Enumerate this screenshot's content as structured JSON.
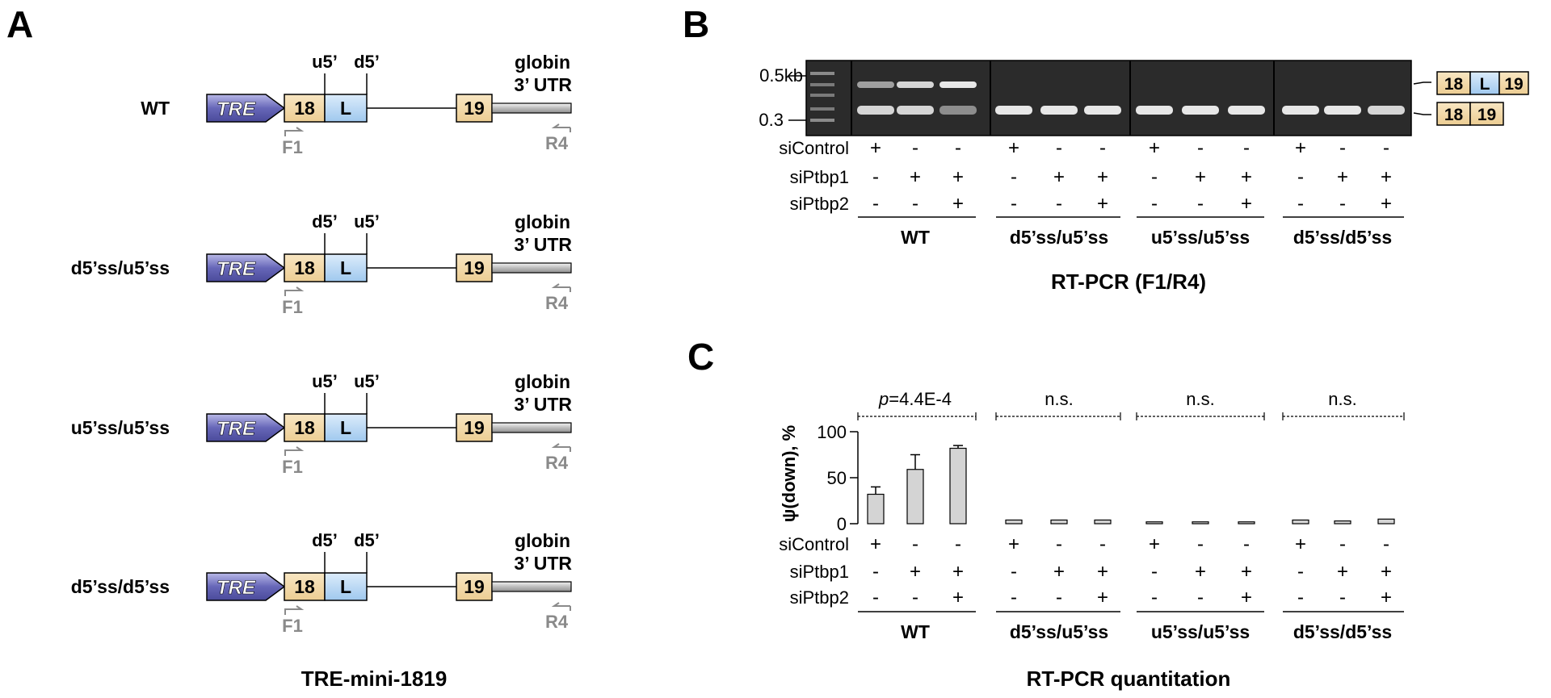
{
  "panel_labels": {
    "a": "A",
    "b": "B",
    "c": "C"
  },
  "panel_a": {
    "caption": "TRE-mini-1819",
    "tre_label": "TRE",
    "exon18": "18",
    "exon_l": "L",
    "exon19": "19",
    "utr_line1": "globin",
    "utr_line2": "3’ UTR",
    "primer_f": "F1",
    "primer_r": "R4",
    "constructs": [
      {
        "name": "WT",
        "site_left": "u5’",
        "site_right": "d5’"
      },
      {
        "name": "d5’ss/u5’ss",
        "site_left": "d5’",
        "site_right": "u5’"
      },
      {
        "name": "u5’ss/u5’ss",
        "site_left": "u5’",
        "site_right": "u5’"
      },
      {
        "name": "d5’ss/d5’ss",
        "site_left": "d5’",
        "site_right": "d5’"
      }
    ]
  },
  "panel_b": {
    "caption": "RT-PCR (F1/R4)",
    "marker_top": "0.5kb",
    "marker_bottom": "0.3",
    "product_long": [
      "18",
      "L",
      "19"
    ],
    "product_short": [
      "18",
      "19"
    ],
    "row_labels": [
      "siControl",
      "siPtbp1",
      "siPtbp2"
    ],
    "band_intensity_note": "upper band intensity per lane (0-1)",
    "upper_band": [
      0.55,
      0.85,
      0.95,
      0,
      0,
      0,
      0,
      0,
      0,
      0,
      0,
      0
    ],
    "lower_band": [
      0.85,
      0.85,
      0.45,
      0.95,
      0.95,
      0.95,
      0.95,
      0.95,
      0.95,
      0.95,
      0.95,
      0.85
    ]
  },
  "conditions": {
    "siControl": [
      "+",
      "-",
      "-"
    ],
    "siPtbp1": [
      "-",
      "+",
      "+"
    ],
    "siPtbp2": [
      "-",
      "-",
      "+"
    ]
  },
  "groups": [
    "WT",
    "d5’ss/u5’ss",
    "u5’ss/u5’ss",
    "d5’ss/d5’ss"
  ],
  "panel_c": {
    "caption": "RT-PCR quantitation",
    "significance": [
      {
        "prefix": "p",
        "text": "=4.4E-4"
      },
      {
        "prefix": "",
        "text": "n.s."
      },
      {
        "prefix": "",
        "text": "n.s."
      },
      {
        "prefix": "",
        "text": "n.s."
      }
    ]
  },
  "chart_data": {
    "type": "bar",
    "ylabel": "ψ(down), %",
    "ylim": [
      0,
      100
    ],
    "yticks": [
      0,
      50,
      100
    ],
    "categories": [
      "WT",
      "d5’ss/u5’ss",
      "u5’ss/u5’ss",
      "d5’ss/d5’ss"
    ],
    "series": [
      {
        "values": [
          32,
          4,
          2,
          4
        ],
        "errors": [
          8,
          0,
          0,
          0
        ]
      },
      {
        "values": [
          59,
          4,
          2,
          3
        ],
        "errors": [
          16,
          0,
          0,
          0
        ]
      },
      {
        "values": [
          82,
          4,
          2,
          5
        ],
        "errors": [
          3,
          0,
          0,
          0
        ]
      }
    ],
    "bar_color": "#d4d4d4"
  }
}
